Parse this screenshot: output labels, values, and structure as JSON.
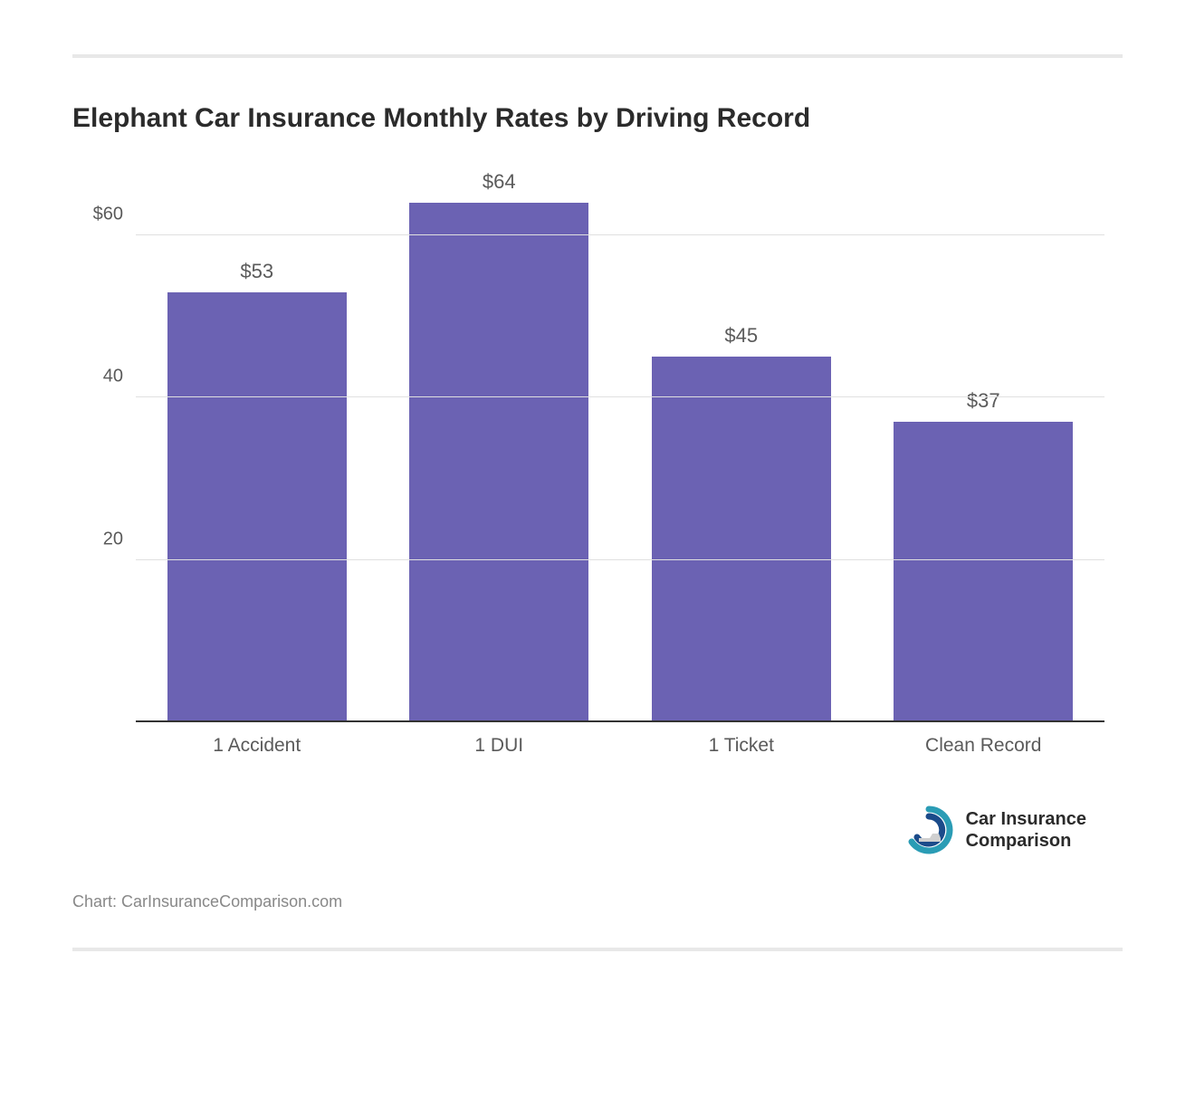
{
  "chart": {
    "type": "bar",
    "title": "Elephant Car Insurance Monthly Rates by Driving Record",
    "title_fontsize": 30,
    "title_color": "#2b2b2b",
    "categories": [
      "1 Accident",
      "1 DUI",
      "1 Ticket",
      "Clean Record"
    ],
    "values": [
      53,
      64,
      45,
      37
    ],
    "value_labels": [
      "$53",
      "$64",
      "$45",
      "$37"
    ],
    "bar_color": "#6b62b3",
    "bar_width": 0.74,
    "background_color": "#ffffff",
    "grid_color": "#e0e0e0",
    "baseline_color": "#333333",
    "ylim": [
      0,
      68
    ],
    "yticks": [
      20,
      40,
      60
    ],
    "ytick_labels": [
      "20",
      "40",
      "$60"
    ],
    "axis_label_color": "#5a5a5a",
    "label_fontsize": 21,
    "value_label_fontsize": 22,
    "divider_color": "#e8e8e8"
  },
  "brand": {
    "line1": "Car Insurance",
    "line2": "Comparison",
    "icon_outer_color": "#2a9cb5",
    "icon_inner_color": "#1b4b8a",
    "icon_car_color": "#d0d0d0"
  },
  "source": {
    "text": "Chart: CarInsuranceComparison.com"
  }
}
